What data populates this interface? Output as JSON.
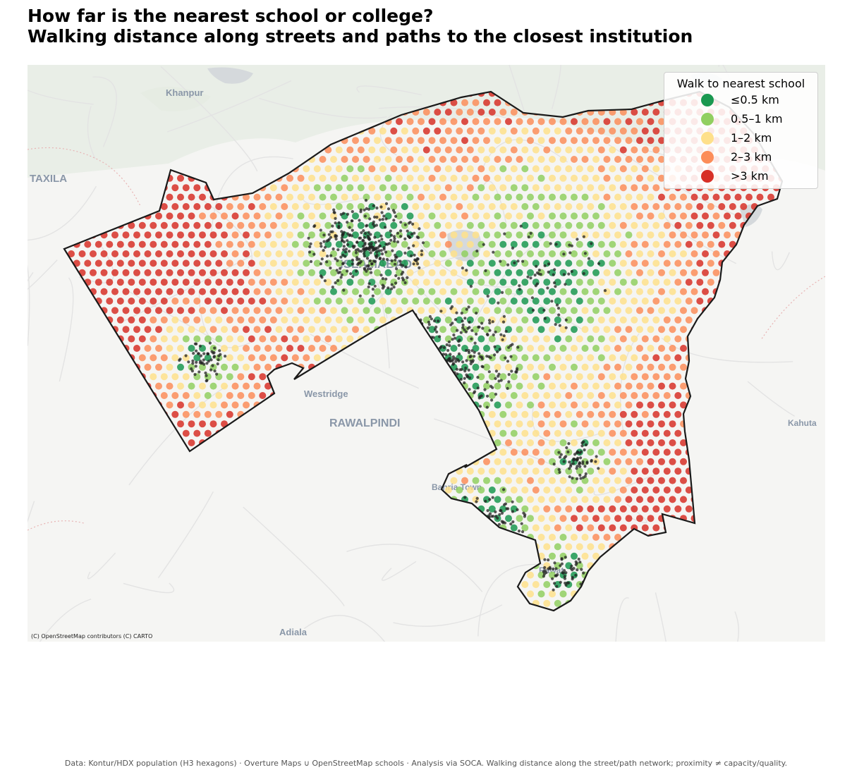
{
  "title_line1": "How far is the nearest school or college?",
  "title_line2": "Walking distance along streets and paths to the closest institution",
  "legend": {
    "title": "Walk to nearest school",
    "items": [
      {
        "label": "≤0.5 km",
        "color": "#1a9850"
      },
      {
        "label": "0.5–1 km",
        "color": "#91cf60"
      },
      {
        "label": "1–2 km",
        "color": "#fee08b"
      },
      {
        "label": "2–3 km",
        "color": "#fc8d59"
      },
      {
        "label": ">3 km",
        "color": "#d73027"
      }
    ]
  },
  "map_labels": [
    {
      "name": "Khanpur"
    },
    {
      "name": "TAXILA"
    },
    {
      "name": "ISLAMABAD"
    },
    {
      "name": "Westridge"
    },
    {
      "name": "RAWALPINDI"
    },
    {
      "name": "Kahuta"
    },
    {
      "name": "Bahria Town"
    },
    {
      "name": "Rawat"
    },
    {
      "name": "Adiala"
    }
  ],
  "attribution": "(C) OpenStreetMap contributors (C) CARTO",
  "footer": "Data: Kontur/HDX population (H3 hexagons) · Overture Maps ∪ OpenStreetMap schools · Analysis via SOCA. Walking distance along the street/path network; proximity ≠ capacity/quality.",
  "colors": {
    "boundary": "#1a1a1a",
    "school_point": "#222222",
    "basemap": "#f5f5f3",
    "water": "#d3d7da",
    "green": "#e8ede6"
  }
}
